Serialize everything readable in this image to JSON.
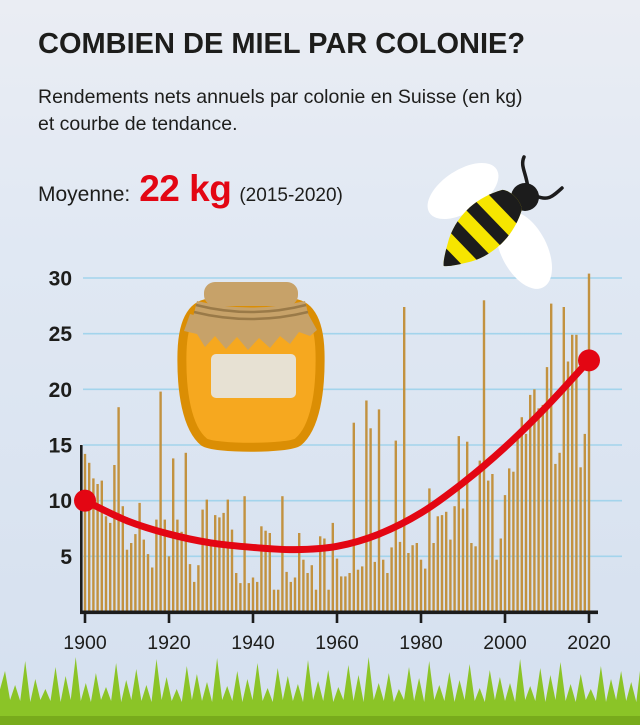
{
  "header": {
    "title": "COMBIEN DE MIEL PAR COLONIE?",
    "subtitle_line1": "Rendements nets annuels par colonie en Suisse (en kg)",
    "subtitle_line2": "et courbe de tendance.",
    "average_label": "Moyenne:",
    "average_value": "22 kg",
    "average_period": "(2015-2020)"
  },
  "icons": {
    "bee": "bee-illustration",
    "honey_jar": "honey-jar-illustration",
    "grass": "grass-border-decoration"
  },
  "colors": {
    "ink": "#1d1d1b",
    "accent_red": "#e30613",
    "bar": "#c29240",
    "gridline": "#a3d4ec",
    "grass": "#8bc427",
    "bee_yellow": "#f6e500",
    "jar_orange": "#f6a81f",
    "jar_lid_tan": "#c7a269",
    "background_top": "#eaedf3",
    "background_bottom": "#d5e0ef"
  },
  "chart_data": {
    "type": "bar",
    "title": "Rendements nets annuels par colonie en Suisse (en kg) et courbe de tendance",
    "xlabel": "",
    "ylabel": "kg",
    "ylim": [
      0,
      31
    ],
    "grid": true,
    "legend": "none",
    "years": {
      "start": 1900,
      "end": 2020,
      "step": 1
    },
    "yticks": [
      5,
      10,
      15,
      20,
      25,
      30
    ],
    "xticks": [
      1900,
      1920,
      1940,
      1960,
      1980,
      2000,
      2020
    ],
    "values": [
      14.2,
      13.4,
      12.0,
      11.5,
      11.8,
      8.6,
      8.0,
      13.2,
      18.4,
      9.5,
      5.6,
      6.2,
      7.0,
      9.8,
      6.5,
      5.2,
      4.0,
      8.3,
      19.8,
      8.3,
      5.0,
      13.8,
      8.3,
      7.2,
      14.3,
      4.3,
      2.7,
      4.2,
      9.2,
      10.1,
      6.5,
      8.7,
      8.5,
      8.9,
      10.1,
      7.4,
      3.5,
      2.6,
      10.4,
      2.6,
      3.1,
      2.7,
      7.7,
      7.3,
      7.1,
      2.0,
      2.0,
      10.4,
      3.6,
      2.7,
      3.1,
      7.1,
      4.7,
      3.5,
      4.2,
      2.0,
      6.8,
      6.6,
      2.0,
      8.0,
      4.8,
      3.2,
      3.2,
      3.5,
      17.0,
      3.8,
      4.1,
      19.0,
      16.5,
      4.5,
      18.2,
      4.7,
      3.5,
      5.8,
      15.4,
      6.3,
      27.4,
      5.3,
      6.0,
      6.2,
      4.7,
      3.9,
      11.1,
      6.2,
      8.6,
      8.7,
      9.0,
      6.5,
      9.5,
      15.8,
      9.3,
      15.3,
      6.2,
      5.9,
      13.6,
      28.0,
      11.8,
      12.4,
      4.7,
      6.6,
      10.5,
      12.9,
      12.6,
      15.5,
      17.5,
      16.0,
      19.5,
      20.0,
      18.3,
      18.6,
      22.0,
      27.7,
      13.3,
      14.3,
      27.4,
      22.5,
      24.9,
      24.9,
      13.0,
      16.0,
      30.4
    ],
    "trend": {
      "name": "courbe de tendance",
      "points": [
        [
          1900,
          10.0
        ],
        [
          1910,
          8.2
        ],
        [
          1920,
          7.0
        ],
        [
          1930,
          6.2
        ],
        [
          1940,
          5.8
        ],
        [
          1950,
          5.6
        ],
        [
          1960,
          5.9
        ],
        [
          1970,
          7.0
        ],
        [
          1980,
          8.9
        ],
        [
          1990,
          11.6
        ],
        [
          2000,
          14.8
        ],
        [
          2010,
          18.5
        ],
        [
          2020,
          22.6
        ]
      ],
      "endpoints": [
        {
          "year": 1900,
          "value": 10.0
        },
        {
          "year": 2020,
          "value": 22.6
        }
      ]
    }
  }
}
